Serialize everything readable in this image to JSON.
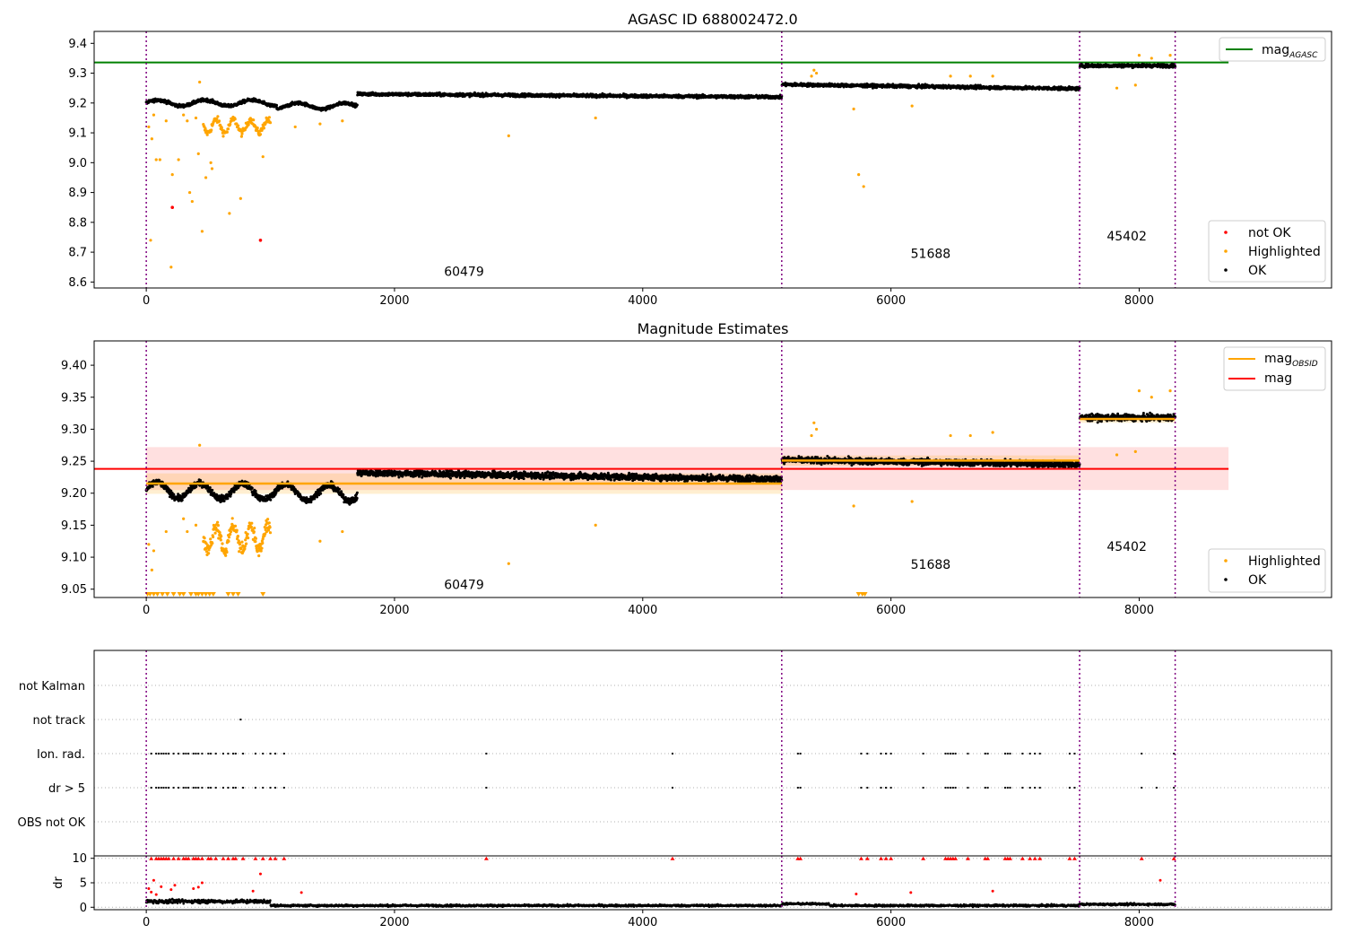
{
  "figure": {
    "panel1_title": "AGASC ID 688002472.0",
    "panel2_title": "Magnitude Estimates"
  },
  "chart_data": [
    {
      "type": "scatter",
      "title": "AGASC ID 688002472.0",
      "xlabel": "",
      "ylabel": "",
      "xlim": [
        -420,
        9550
      ],
      "ylim": [
        8.58,
        9.44
      ],
      "xticks": [
        0,
        2000,
        4000,
        6000,
        8000
      ],
      "yticks": [
        8.6,
        8.7,
        8.8,
        8.9,
        9.0,
        9.1,
        9.2,
        9.3,
        9.4
      ],
      "ytick_labels": [
        "8.6",
        "8.7",
        "8.8",
        "8.9",
        "9.0",
        "9.1",
        "9.2",
        "9.3",
        "9.4"
      ],
      "obsid_boundaries": [
        0,
        5120,
        7520,
        8290
      ],
      "obsid_labels": [
        {
          "text": "60479",
          "x": 2560,
          "y": 8.62
        },
        {
          "text": "51688",
          "x": 6320,
          "y": 8.68
        },
        {
          "text": "45402",
          "x": 7900,
          "y": 8.74
        }
      ],
      "hlines": [
        {
          "name": "mag_AGASC",
          "y": 9.336,
          "color": "#008000",
          "xmax": 8720
        }
      ],
      "segments": [
        {
          "x_start": 0,
          "x_end": 1700,
          "level_start": 9.2,
          "level_end": 9.2
        },
        {
          "x_start": 1700,
          "x_end": 5120,
          "level_start": 9.23,
          "level_end": 9.22
        },
        {
          "x_start": 5120,
          "x_end": 7520,
          "level_start": 9.262,
          "level_end": 9.248
        },
        {
          "x_start": 7520,
          "x_end": 8290,
          "level_start": 9.325,
          "level_end": 9.325
        }
      ],
      "dips": [
        {
          "x_start": 450,
          "x_end": 1000,
          "depth": 0.1
        }
      ],
      "highlighted_points": [
        [
          20,
          9.12
        ],
        [
          35,
          8.74
        ],
        [
          45,
          9.08
        ],
        [
          60,
          9.16
        ],
        [
          80,
          9.01
        ],
        [
          110,
          9.01
        ],
        [
          160,
          9.14
        ],
        [
          200,
          8.65
        ],
        [
          210,
          8.96
        ],
        [
          260,
          9.01
        ],
        [
          300,
          9.16
        ],
        [
          330,
          9.14
        ],
        [
          350,
          8.9
        ],
        [
          370,
          8.87
        ],
        [
          400,
          9.15
        ],
        [
          420,
          9.03
        ],
        [
          430,
          9.27
        ],
        [
          450,
          8.77
        ],
        [
          480,
          8.95
        ],
        [
          520,
          9.0
        ],
        [
          530,
          8.98
        ],
        [
          670,
          8.83
        ],
        [
          760,
          8.88
        ],
        [
          940,
          9.02
        ],
        [
          1200,
          9.12
        ],
        [
          1400,
          9.13
        ],
        [
          1580,
          9.14
        ],
        [
          2920,
          9.09
        ],
        [
          3620,
          9.15
        ],
        [
          5700,
          9.18
        ],
        [
          5740,
          8.96
        ],
        [
          5780,
          8.92
        ],
        [
          6170,
          9.19
        ],
        [
          5380,
          9.31
        ],
        [
          5400,
          9.3
        ],
        [
          5360,
          9.29
        ],
        [
          6480,
          9.29
        ],
        [
          6640,
          9.29
        ],
        [
          6820,
          9.29
        ],
        [
          7820,
          9.25
        ],
        [
          7970,
          9.26
        ],
        [
          8000,
          9.36
        ],
        [
          8100,
          9.35
        ],
        [
          8250,
          9.36
        ]
      ],
      "not_ok_points": [
        [
          210,
          8.85
        ],
        [
          920,
          8.74
        ]
      ],
      "legend": {
        "lines": [
          {
            "label": "mag",
            "subscript": "AGASC",
            "color": "#008000"
          }
        ],
        "points": [
          {
            "label": "not OK",
            "color": "#ff0000"
          },
          {
            "label": "Highlighted",
            "color": "#ffa500"
          },
          {
            "label": "OK",
            "color": "#000000"
          }
        ]
      }
    },
    {
      "type": "scatter",
      "title": "Magnitude Estimates",
      "xlabel": "",
      "ylabel": "",
      "xlim": [
        -420,
        9550
      ],
      "ylim": [
        9.037,
        9.438
      ],
      "xticks": [
        0,
        2000,
        4000,
        6000,
        8000
      ],
      "yticks": [
        9.05,
        9.1,
        9.15,
        9.2,
        9.25,
        9.3,
        9.35,
        9.4
      ],
      "ytick_labels": [
        "9.05",
        "9.10",
        "9.15",
        "9.20",
        "9.25",
        "9.30",
        "9.35",
        "9.40"
      ],
      "obsid_boundaries": [
        0,
        5120,
        7520,
        8290
      ],
      "obsid_labels": [
        {
          "text": "60479",
          "x": 2560,
          "y": 9.05
        },
        {
          "text": "51688",
          "x": 6320,
          "y": 9.082
        },
        {
          "text": "45402",
          "x": 7900,
          "y": 9.11
        }
      ],
      "mag": {
        "name": "mag",
        "y": 9.238,
        "band": [
          9.205,
          9.272
        ],
        "xmax": 8720,
        "color": "#ff0000"
      },
      "mag_obsid": [
        {
          "x_start": 0,
          "x_end": 5120,
          "y": 9.215,
          "band": [
            9.199,
            9.231
          ]
        },
        {
          "x_start": 5120,
          "x_end": 7520,
          "y": 9.251,
          "band": [
            9.243,
            9.259
          ]
        },
        {
          "x_start": 7520,
          "x_end": 8290,
          "y": 9.316,
          "band": [
            9.31,
            9.322
          ]
        }
      ],
      "highlighted_points": [
        [
          20,
          9.12
        ],
        [
          45,
          9.08
        ],
        [
          60,
          9.11
        ],
        [
          160,
          9.14
        ],
        [
          300,
          9.16
        ],
        [
          330,
          9.14
        ],
        [
          400,
          9.15
        ],
        [
          430,
          9.275
        ],
        [
          1400,
          9.125
        ],
        [
          1580,
          9.14
        ],
        [
          2920,
          9.09
        ],
        [
          3620,
          9.15
        ],
        [
          5700,
          9.18
        ],
        [
          6170,
          9.187
        ],
        [
          5380,
          9.31
        ],
        [
          5400,
          9.3
        ],
        [
          5360,
          9.29
        ],
        [
          6480,
          9.29
        ],
        [
          6640,
          9.29
        ],
        [
          6820,
          9.295
        ],
        [
          7820,
          9.26
        ],
        [
          7970,
          9.265
        ],
        [
          8000,
          9.36
        ],
        [
          8100,
          9.35
        ],
        [
          8250,
          9.36
        ]
      ],
      "clipped_points_x": [
        10,
        30,
        60,
        90,
        130,
        170,
        220,
        270,
        300,
        360,
        400,
        420,
        450,
        480,
        510,
        540,
        660,
        700,
        740,
        940,
        5740,
        5770,
        5790
      ],
      "legend": {
        "lines": [
          {
            "label": "mag",
            "subscript": "OBSID",
            "color": "#ffa500"
          },
          {
            "label": "mag",
            "subscript": "",
            "color": "#ff0000"
          }
        ],
        "points": [
          {
            "label": "Highlighted",
            "color": "#ffa500"
          },
          {
            "label": "OK",
            "color": "#000000"
          }
        ]
      }
    },
    {
      "type": "scatter",
      "title": "",
      "xlabel": "",
      "ylabel": "",
      "xlim": [
        -420,
        9550
      ],
      "categories": [
        "OBS not OK",
        "dr > 5",
        "Ion. rad.",
        "not track",
        "not Kalman"
      ],
      "flags": {
        "not track": [
          760
        ],
        "Ion. rad.": [
          40,
          80,
          100,
          120,
          140,
          160,
          180,
          220,
          260,
          300,
          320,
          340,
          380,
          400,
          420,
          450,
          500,
          520,
          560,
          620,
          660,
          700,
          720,
          780,
          880,
          940,
          1000,
          1040,
          1110,
          2740,
          4240,
          5250,
          5270,
          5760,
          5810,
          5920,
          5960,
          6000,
          6260,
          6440,
          6460,
          6480,
          6500,
          6520,
          6620,
          6760,
          6780,
          6920,
          6940,
          6960,
          7060,
          7120,
          7160,
          7200,
          7440,
          7480,
          8020,
          8280
        ],
        "dr > 5": [
          40,
          80,
          100,
          120,
          140,
          160,
          180,
          220,
          260,
          300,
          320,
          340,
          380,
          400,
          420,
          450,
          500,
          520,
          560,
          620,
          660,
          700,
          720,
          780,
          880,
          940,
          1000,
          1040,
          1110,
          2740,
          4240,
          5250,
          5270,
          5760,
          5810,
          5920,
          5960,
          6000,
          6260,
          6440,
          6460,
          6480,
          6500,
          6520,
          6620,
          6760,
          6780,
          6920,
          6940,
          6960,
          7060,
          7120,
          7160,
          7200,
          7440,
          7480,
          8020,
          8140,
          8280
        ]
      },
      "obsid_boundaries": [
        0,
        5120,
        7520,
        8290
      ]
    },
    {
      "type": "scatter",
      "title": "",
      "xlabel": "",
      "ylabel": "dr",
      "xlim": [
        -420,
        9550
      ],
      "ylim": [
        -0.5,
        10.5
      ],
      "xticks": [
        0,
        2000,
        4000,
        6000,
        8000
      ],
      "yticks": [
        0,
        5,
        10
      ],
      "ytick_labels": [
        "0",
        "5",
        "10"
      ],
      "clipped_x": [
        40,
        80,
        100,
        120,
        140,
        160,
        180,
        220,
        260,
        300,
        320,
        340,
        380,
        400,
        420,
        450,
        500,
        520,
        560,
        620,
        660,
        700,
        720,
        780,
        880,
        940,
        1000,
        1040,
        1110,
        2740,
        4240,
        5250,
        5270,
        5760,
        5810,
        5920,
        5960,
        6000,
        6260,
        6440,
        6460,
        6480,
        6500,
        6520,
        6620,
        6760,
        6780,
        6920,
        6940,
        6960,
        7060,
        7120,
        7160,
        7200,
        7440,
        7480,
        8020,
        8280
      ],
      "high_points": [
        [
          20,
          3.8
        ],
        [
          40,
          3.1
        ],
        [
          60,
          5.5
        ],
        [
          80,
          2.6
        ],
        [
          120,
          4.2
        ],
        [
          200,
          3.6
        ],
        [
          230,
          4.5
        ],
        [
          380,
          3.8
        ],
        [
          420,
          4.1
        ],
        [
          450,
          5.0
        ],
        [
          860,
          3.3
        ],
        [
          920,
          6.8
        ],
        [
          1250,
          3.0
        ],
        [
          5720,
          2.7
        ],
        [
          6160,
          3.0
        ],
        [
          6820,
          3.3
        ],
        [
          8170,
          5.5
        ]
      ],
      "obsid_boundaries": [
        0,
        5120,
        7520,
        8290
      ]
    }
  ]
}
